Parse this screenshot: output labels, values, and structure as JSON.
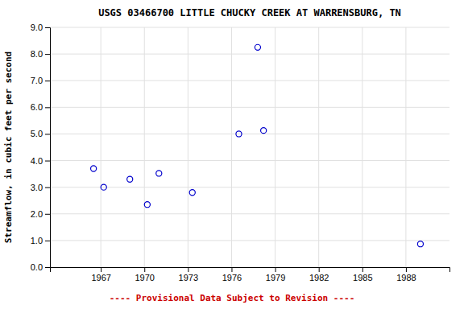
{
  "chart_data": {
    "type": "scatter",
    "title": "USGS 03466700 LITTLE CHUCKY CREEK AT WARRENSBURG, TN",
    "ylabel": "Streamflow, in cubic feet per second",
    "footnote": "---- Provisional Data Subject to Revision ----",
    "x": [
      1966.5,
      1967.2,
      1969.0,
      1970.2,
      1971.0,
      1973.3,
      1976.5,
      1977.8,
      1978.2,
      1989.0
    ],
    "values": [
      3.7,
      3.0,
      3.3,
      2.35,
      3.52,
      2.8,
      5.0,
      8.25,
      5.13,
      0.87
    ],
    "color": "#0000CC",
    "marker": "circle",
    "xlim": [
      1963.5,
      1991
    ],
    "ylim": [
      0.0,
      9.0
    ],
    "xticks": [
      1967,
      1970,
      1973,
      1976,
      1979,
      1982,
      1985,
      1988
    ],
    "yticks": [
      {
        "value": 0.0,
        "label": "0.0"
      },
      {
        "value": 1.0,
        "label": "1.0"
      },
      {
        "value": 2.0,
        "label": "2.0"
      },
      {
        "value": 3.0,
        "label": "3.0"
      },
      {
        "value": 4.0,
        "label": "4.0"
      },
      {
        "value": 5.0,
        "label": "5.0"
      },
      {
        "value": 6.0,
        "label": "6.0"
      },
      {
        "value": 7.0,
        "label": "7.0"
      },
      {
        "value": 8.0,
        "label": "8.0"
      },
      {
        "value": 9.0,
        "label": "9.0"
      }
    ],
    "grid": true
  }
}
